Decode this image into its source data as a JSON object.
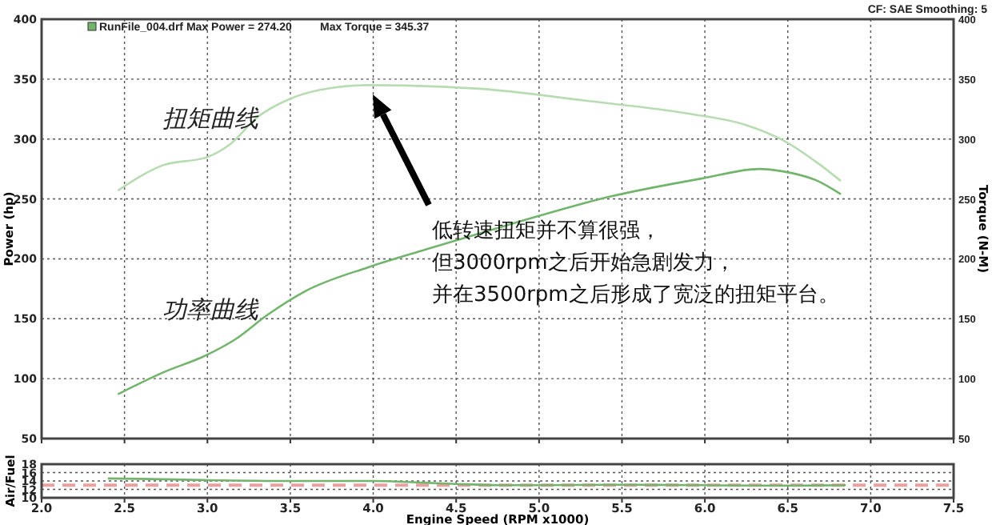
{
  "chart_data": [
    {
      "type": "line",
      "ylabel": "Power (hp)",
      "y2label": "Torque (N-M)",
      "xlim": [
        2,
        7.5
      ],
      "xticks": [
        2,
        2.5,
        3,
        3.5,
        4,
        4.5,
        5,
        5.5,
        6,
        6.5,
        7,
        7.5
      ],
      "ylim": [
        50,
        400
      ],
      "yticks": [
        50,
        100,
        150,
        200,
        250,
        300,
        350,
        400
      ],
      "y2lim": [
        50,
        400
      ],
      "y2ticks": [
        50,
        100,
        150,
        200,
        250,
        300,
        350,
        400
      ],
      "tick_labels": "y",
      "grid": true,
      "line_style": "solid",
      "marker": "none",
      "series": [
        {
          "name": "扭矩曲线",
          "color": "#b8dcb2",
          "axis": "y2",
          "x": [
            2.46,
            2.73,
            3.0,
            3.14,
            3.3,
            3.49,
            3.68,
            3.97,
            4.64,
            5.28,
            5.91,
            6.24,
            6.47,
            6.68,
            6.82
          ],
          "values": [
            257,
            278,
            285,
            296,
            318,
            333,
            341,
            345,
            342,
            332,
            321,
            312,
            299,
            280,
            265
          ]
        },
        {
          "name": "功率曲线",
          "color": "#72b46c",
          "x": [
            2.46,
            2.73,
            3.0,
            3.17,
            3.36,
            3.59,
            3.97,
            4.32,
            4.83,
            5.43,
            5.98,
            6.33,
            6.47,
            6.68,
            6.82
          ],
          "values": [
            87,
            105,
            120,
            133,
            153,
            173,
            193,
            208,
            229,
            252,
            267,
            275,
            273,
            265,
            254
          ]
        }
      ],
      "annotations": [
        "RunFile_004.drf Max Power = 274.20",
        "Max Torque = 345.37",
        "CF: SAE  Smoothing: 5",
        "低转速扭矩并不算很强，",
        "但3000rpm之后开始急剧发力，",
        "并在3500rpm之后形成了宽泛的扭矩平台。"
      ]
    },
    {
      "type": "line",
      "xlabel": "Engine Speed (RPM x1000)",
      "ylabel": "Air/Fuel",
      "xlim": [
        2,
        7.5
      ],
      "xticks": [
        {
          "value": 2,
          "label": "2.0"
        },
        2.5,
        {
          "value": 3,
          "label": "3.0"
        },
        3.5,
        {
          "value": 4,
          "label": "4.0"
        },
        4.5,
        {
          "value": 5,
          "label": "5.0"
        },
        5.5,
        {
          "value": 6,
          "label": "6.0"
        },
        6.5,
        {
          "value": 7,
          "label": "7.0"
        },
        7.5
      ],
      "ylim": [
        10,
        18
      ],
      "yticks": [
        10,
        12,
        14,
        16,
        18
      ],
      "grid": true,
      "line_style": "solid",
      "marker": "none",
      "series": [
        {
          "color": "#72b46c",
          "x": [
            2.4,
            2.6,
            3.0,
            3.5,
            4.0,
            4.3,
            4.5,
            4.8,
            5.0,
            5.5,
            6.0,
            6.3,
            6.5,
            6.85
          ],
          "values": [
            14.6,
            14.5,
            14.2,
            14.0,
            14.0,
            13.6,
            13.3,
            13.0,
            13.0,
            13.1,
            13.0,
            12.9,
            12.9,
            13.0
          ]
        }
      ],
      "ref_lines": [
        {
          "axis": "y",
          "value": 13,
          "color": "#e8a0a0",
          "line_style": "dashed"
        }
      ]
    }
  ]
}
